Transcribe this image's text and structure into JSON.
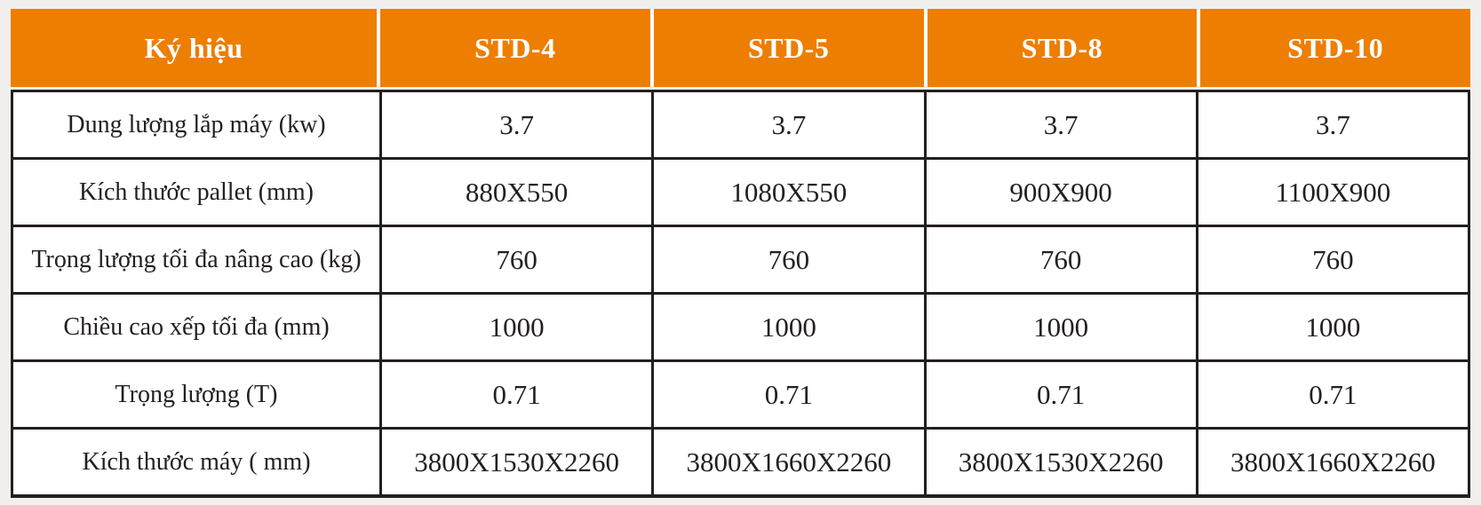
{
  "page": {
    "background_color": "#f1f0ee"
  },
  "table": {
    "accent_color": "#ee7e01",
    "border_color": "#231f20",
    "header_text_color": "#ffffff",
    "header": {
      "label": "Ký hiệu",
      "columns": [
        "STD-4",
        "STD-5",
        "STD-8",
        "STD-10"
      ]
    },
    "rows": [
      {
        "label": "Dung lượng lắp máy (kw)",
        "values": [
          "3.7",
          "3.7",
          "3.7",
          "3.7"
        ]
      },
      {
        "label": "Kích thước pallet (mm)",
        "values": [
          "880X550",
          "1080X550",
          "900X900",
          "1100X900"
        ]
      },
      {
        "label": "Trọng lượng tối đa nâng cao (kg)",
        "values": [
          "760",
          "760",
          "760",
          "760"
        ]
      },
      {
        "label": "Chiều cao xếp tối đa (mm)",
        "values": [
          "1000",
          "1000",
          "1000",
          "1000"
        ]
      },
      {
        "label": "Trọng lượng (T)",
        "values": [
          "0.71",
          "0.71",
          "0.71",
          "0.71"
        ]
      },
      {
        "label": "Kích thước máy ( mm)",
        "values": [
          "3800X1530X2260",
          "3800X1660X2260",
          "3800X1530X2260",
          "3800X1660X2260"
        ]
      }
    ]
  }
}
